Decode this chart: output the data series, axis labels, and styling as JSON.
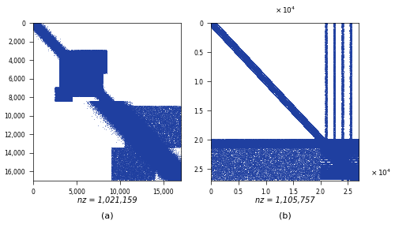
{
  "fig_width": 5.0,
  "fig_height": 2.89,
  "dpi": 100,
  "subplot_a": {
    "n": 17000,
    "nz": 1021159,
    "xlim": [
      0,
      17000
    ],
    "ylim": [
      17000,
      0
    ],
    "xticks": [
      0,
      5000,
      10000,
      15000
    ],
    "yticks": [
      0,
      2000,
      4000,
      6000,
      8000,
      10000,
      12000,
      14000,
      16000
    ],
    "xlabel_nz": "nz = 1,021,159",
    "label": "(a)",
    "dot_color": "#1f3fa0"
  },
  "subplot_b": {
    "n": 27000,
    "nz": 1105757,
    "xlim": [
      0,
      27000
    ],
    "ylim": [
      27000,
      0
    ],
    "xticks": [
      0,
      5000,
      10000,
      15000,
      20000,
      25000
    ],
    "yticks": [
      0,
      5000,
      10000,
      15000,
      20000,
      25000
    ],
    "xlabel_nz": "nz = 1,105,757",
    "label": "(b)",
    "dot_color": "#1f3fa0",
    "scale_factor": 10000
  },
  "background_color": "#ffffff"
}
